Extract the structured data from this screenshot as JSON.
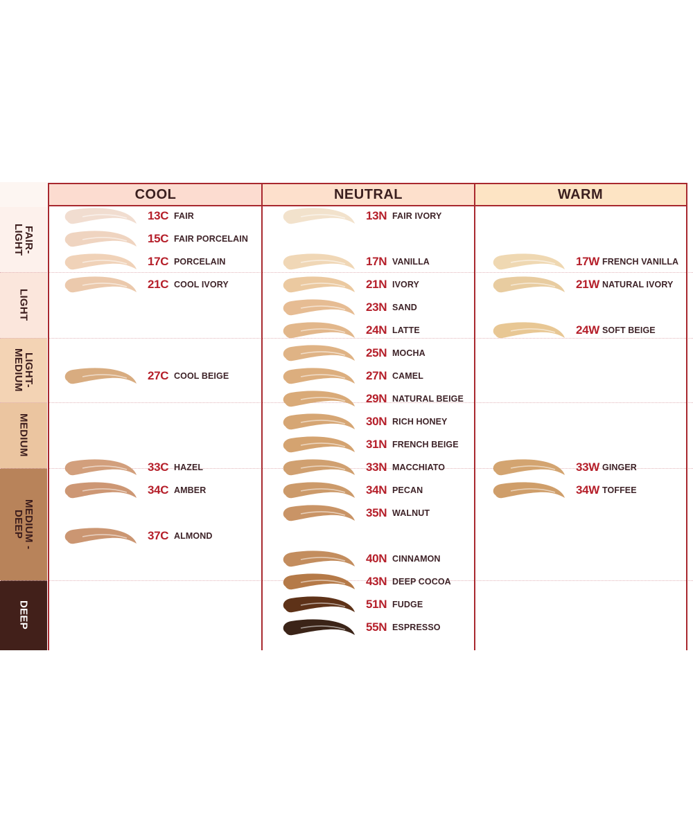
{
  "columns": [
    {
      "label": "COOL",
      "bg": "#fcdcd0"
    },
    {
      "label": "NEUTRAL",
      "bg": "#fde0cc"
    },
    {
      "label": "WARM",
      "bg": "#fde4c4"
    }
  ],
  "bands": [
    {
      "label": "FAIR-\nLIGHT",
      "bg": "#fdf1ec",
      "dark": false
    },
    {
      "label": "LIGHT",
      "bg": "#fbe6dc",
      "dark": false
    },
    {
      "label": "LIGHT-\nMEDIUM",
      "bg": "#f3d3b4",
      "dark": false
    },
    {
      "label": "MEDIUM",
      "bg": "#ebc5a0",
      "dark": false
    },
    {
      "label": "MEDIUM -\nDEEP",
      "bg": "#b8835a",
      "dark": false
    },
    {
      "label": "DEEP",
      "bg": "#42201a",
      "dark": true
    }
  ],
  "shades": {
    "cool": [
      {
        "code": "13C",
        "name": "FAIR",
        "color": "#f1ddd0"
      },
      {
        "code": "15C",
        "name": "FAIR PORCELAIN",
        "color": "#efd4c0"
      },
      {
        "code": "17C",
        "name": "PORCELAIN",
        "color": "#f0d2b8"
      },
      {
        "code": "21C",
        "name": "COOL IVORY",
        "color": "#ebc9ac"
      },
      {
        "code": "27C",
        "name": "COOL BEIGE",
        "color": "#d8ac80"
      },
      {
        "code": "33C",
        "name": "HAZEL",
        "color": "#d29f7c"
      },
      {
        "code": "34C",
        "name": "AMBER",
        "color": "#cd9774"
      },
      {
        "code": "37C",
        "name": "ALMOND",
        "color": "#cb9672"
      }
    ],
    "neutral": [
      {
        "code": "13N",
        "name": "FAIR IVORY",
        "color": "#f2e2cc"
      },
      {
        "code": "17N",
        "name": "VANILLA",
        "color": "#f0d7b6"
      },
      {
        "code": "21N",
        "name": "IVORY",
        "color": "#ebc9a0"
      },
      {
        "code": "23N",
        "name": "SAND",
        "color": "#e6bc93"
      },
      {
        "code": "24N",
        "name": "LATTE",
        "color": "#e2b78b"
      },
      {
        "code": "25N",
        "name": "MOCHA",
        "color": "#dfb385"
      },
      {
        "code": "27N",
        "name": "CAMEL",
        "color": "#dcae7e"
      },
      {
        "code": "29N",
        "name": "NATURAL BEIGE",
        "color": "#d9aa78"
      },
      {
        "code": "30N",
        "name": "RICH HONEY",
        "color": "#d6a674"
      },
      {
        "code": "31N",
        "name": "FRENCH BEIGE",
        "color": "#d4a370"
      },
      {
        "code": "33N",
        "name": "MACCHIATO",
        "color": "#d0a070"
      },
      {
        "code": "34N",
        "name": "PECAN",
        "color": "#cc9a6a"
      },
      {
        "code": "35N",
        "name": "WALNUT",
        "color": "#c99466"
      },
      {
        "code": "40N",
        "name": "CINNAMON",
        "color": "#c38d5e"
      },
      {
        "code": "43N",
        "name": "DEEP COCOA",
        "color": "#b57a48"
      },
      {
        "code": "51N",
        "name": "FUDGE",
        "color": "#5e3218"
      },
      {
        "code": "55N",
        "name": "ESPRESSO",
        "color": "#3b2418"
      }
    ],
    "warm": [
      {
        "code": "17W",
        "name": "FRENCH VANILLA",
        "color": "#efd8b2"
      },
      {
        "code": "21W",
        "name": "NATURAL IVORY",
        "color": "#e8cca0"
      },
      {
        "code": "24W",
        "name": "SOFT BEIGE",
        "color": "#e8c794"
      },
      {
        "code": "33W",
        "name": "GINGER",
        "color": "#d3a470"
      },
      {
        "code": "34W",
        "name": "TOFFEE",
        "color": "#cf9e6a"
      }
    ]
  }
}
